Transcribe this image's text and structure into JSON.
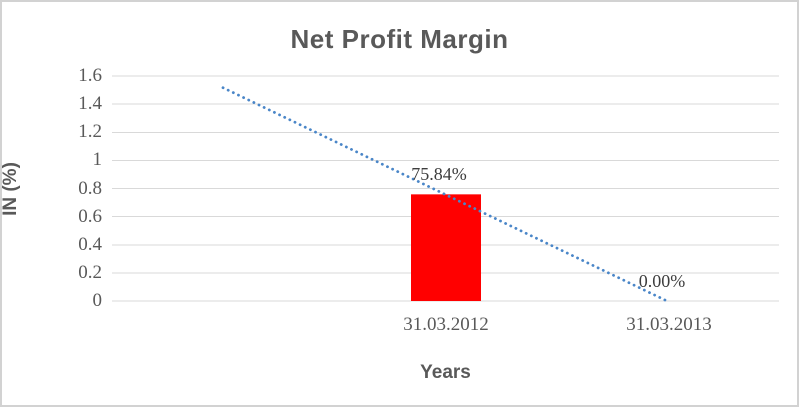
{
  "chart_data": {
    "type": "bar",
    "title": "Net Profit Margin",
    "xlabel": "Years",
    "ylabel": "IN (%)",
    "categories": [
      "31.03.2012",
      "31.03.2013"
    ],
    "values": [
      0.7584,
      0.0
    ],
    "data_labels": [
      "75.84%",
      "0.00%"
    ],
    "ylim": [
      0,
      1.6
    ],
    "ytick_step": 0.2,
    "ytick_labels": [
      "0",
      "0.2",
      "0.4",
      "0.6",
      "0.8",
      "1",
      "1.2",
      "1.4",
      "1.6"
    ],
    "grid": true,
    "legend": false,
    "colors": {
      "bar": "#ff0000",
      "trendline": "#4a86c8",
      "gridline": "#d9d9d9",
      "text": "#595959",
      "data_label": "#3d3d3d"
    },
    "trendline": {
      "type": "linear",
      "dash_style": "round-dot",
      "backward_periods": 1,
      "start_value": 1.5168,
      "end_value": 0.0
    }
  }
}
